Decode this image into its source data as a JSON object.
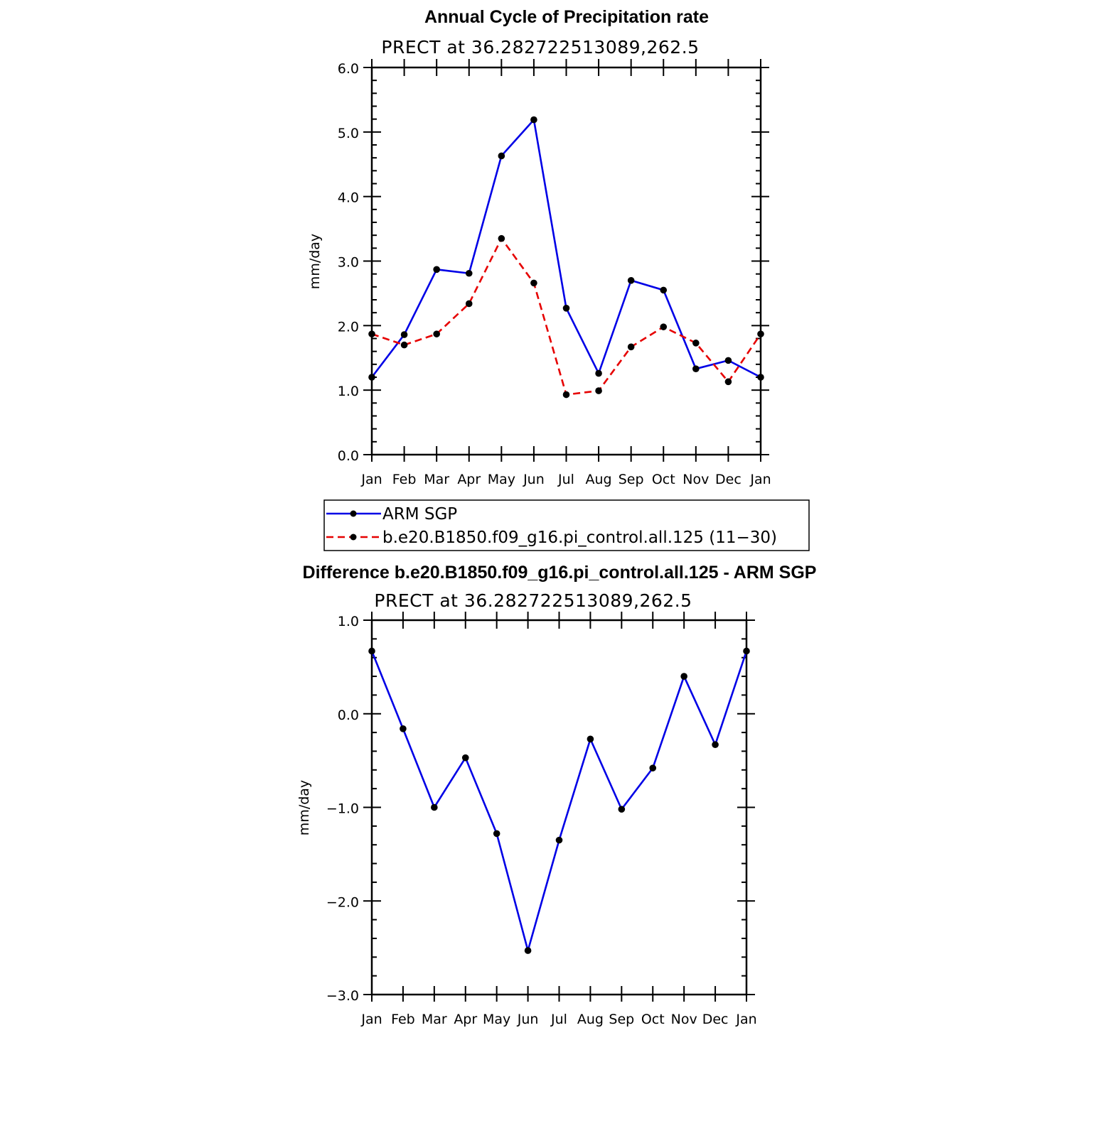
{
  "chart_data": [
    {
      "type": "line",
      "title": "Annual Cycle of Precipitation rate",
      "subtitle": "PRECT at 36.282722513089,262.5",
      "ylabel": "mm/day",
      "ylim": [
        0,
        6
      ],
      "yticks": [
        "0.0",
        "1.0",
        "2.0",
        "3.0",
        "4.0",
        "5.0",
        "6.0"
      ],
      "categories": [
        "Jan",
        "Feb",
        "Mar",
        "Apr",
        "May",
        "Jun",
        "Jul",
        "Aug",
        "Sep",
        "Oct",
        "Nov",
        "Dec",
        "Jan"
      ],
      "legend_position": "bottom",
      "series": [
        {
          "name": "ARM SGP",
          "color": "#0000e6",
          "dash": "solid",
          "values": [
            1.2,
            1.86,
            2.87,
            2.81,
            4.63,
            5.19,
            2.27,
            1.26,
            2.7,
            2.55,
            1.33,
            1.46,
            1.2
          ]
        },
        {
          "name": "b.e20.B1850.f09_g16.pi_control.all.125 (11−30)",
          "color": "#e60000",
          "dash": "dashed",
          "values": [
            1.87,
            1.7,
            1.87,
            2.34,
            3.35,
            2.66,
            0.93,
            0.99,
            1.67,
            1.98,
            1.73,
            1.13,
            1.87
          ]
        }
      ]
    },
    {
      "type": "line",
      "title": "Difference b.e20.B1850.f09_g16.pi_control.all.125 - ARM SGP",
      "subtitle": "PRECT at 36.282722513089,262.5",
      "ylabel": "mm/day",
      "ylim": [
        -3,
        1
      ],
      "yticks": [
        "−3.0",
        "−2.0",
        "−1.0",
        "0.0",
        "1.0"
      ],
      "categories": [
        "Jan",
        "Feb",
        "Mar",
        "Apr",
        "May",
        "Jun",
        "Jul",
        "Aug",
        "Sep",
        "Oct",
        "Nov",
        "Dec",
        "Jan"
      ],
      "series": [
        {
          "color": "#0000e6",
          "dash": "solid",
          "values": [
            0.67,
            -0.16,
            -1.0,
            -0.47,
            -1.28,
            -2.53,
            -1.35,
            -0.27,
            -1.02,
            -0.58,
            0.4,
            -0.33,
            0.67
          ]
        }
      ]
    }
  ]
}
